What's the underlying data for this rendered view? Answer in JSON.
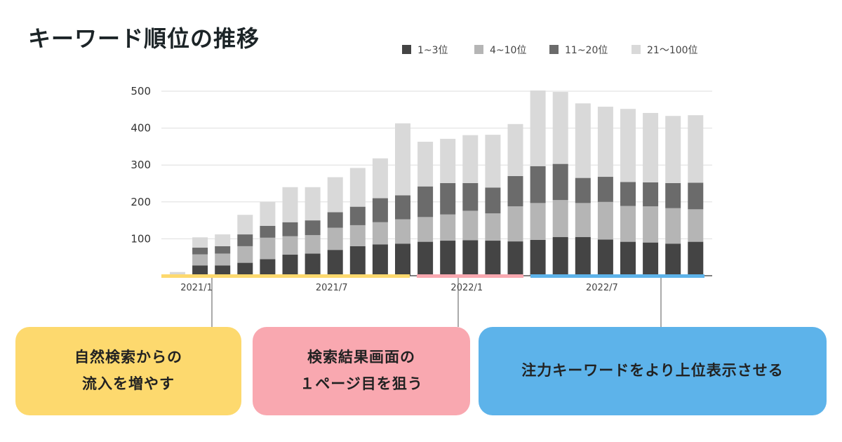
{
  "title": "キーワード順位の推移",
  "colors": {
    "rank_1_3": "#444444",
    "rank_4_10": "#b5b5b5",
    "rank_11_20": "#6b6b6b",
    "rank_21_100": "#d9d9d9",
    "phase1": "#fdd96e",
    "phase2": "#f9a8b0",
    "phase3": "#5db3ea"
  },
  "chart_data": {
    "type": "bar",
    "stacked": true,
    "categories": [
      "2020/12",
      "2021/1",
      "2021/2",
      "2021/3",
      "2021/4",
      "2021/5",
      "2021/6",
      "2021/7",
      "2021/8",
      "2021/9",
      "2021/10",
      "2021/11",
      "2021/12",
      "2022/1",
      "2022/2",
      "2022/3",
      "2022/4",
      "2022/5",
      "2022/6",
      "2022/7",
      "2022/8",
      "2022/9",
      "2022/10",
      "2022/11",
      "2022/12",
      "2023/1"
    ],
    "x_tick_labels": [
      "2021/1",
      "2021/7",
      "2022/1",
      "2022/7"
    ],
    "y_ticks": [
      100,
      200,
      300,
      400,
      500
    ],
    "ylim": [
      0,
      500
    ],
    "grid": true,
    "legend_position": "top-right",
    "series": [
      {
        "name": "1~3位",
        "color": "#444444",
        "values": [
          0,
          28,
          28,
          35,
          45,
          57,
          60,
          70,
          80,
          85,
          87,
          92,
          95,
          96,
          95,
          93,
          97,
          105,
          105,
          98,
          92,
          90,
          87,
          92,
          0,
          0
        ]
      },
      {
        "name": "4~10位",
        "color": "#b5b5b5",
        "values": [
          0,
          30,
          32,
          45,
          58,
          50,
          50,
          60,
          57,
          60,
          66,
          67,
          71,
          80,
          74,
          95,
          100,
          100,
          92,
          102,
          97,
          98,
          96,
          88,
          0,
          0
        ]
      },
      {
        "name": "11~20位",
        "color": "#6b6b6b",
        "values": [
          0,
          18,
          20,
          32,
          32,
          38,
          40,
          42,
          50,
          65,
          65,
          83,
          85,
          75,
          70,
          82,
          100,
          98,
          68,
          68,
          65,
          65,
          68,
          72,
          0,
          0
        ]
      },
      {
        "name": "21〜100位",
        "color": "#d9d9d9",
        "values": [
          10,
          28,
          32,
          53,
          65,
          95,
          90,
          95,
          105,
          108,
          195,
          121,
          120,
          130,
          143,
          141,
          205,
          195,
          202,
          190,
          198,
          188,
          182,
          183,
          0,
          0
        ]
      }
    ]
  },
  "boxes": [
    {
      "line1": "自然検索からの",
      "line2": "流入を増やす"
    },
    {
      "line1": "検索結果画面の",
      "line2": "１ページ目を狙う"
    },
    {
      "line1": "注力キーワードをより上位表示させる",
      "line2": ""
    }
  ]
}
